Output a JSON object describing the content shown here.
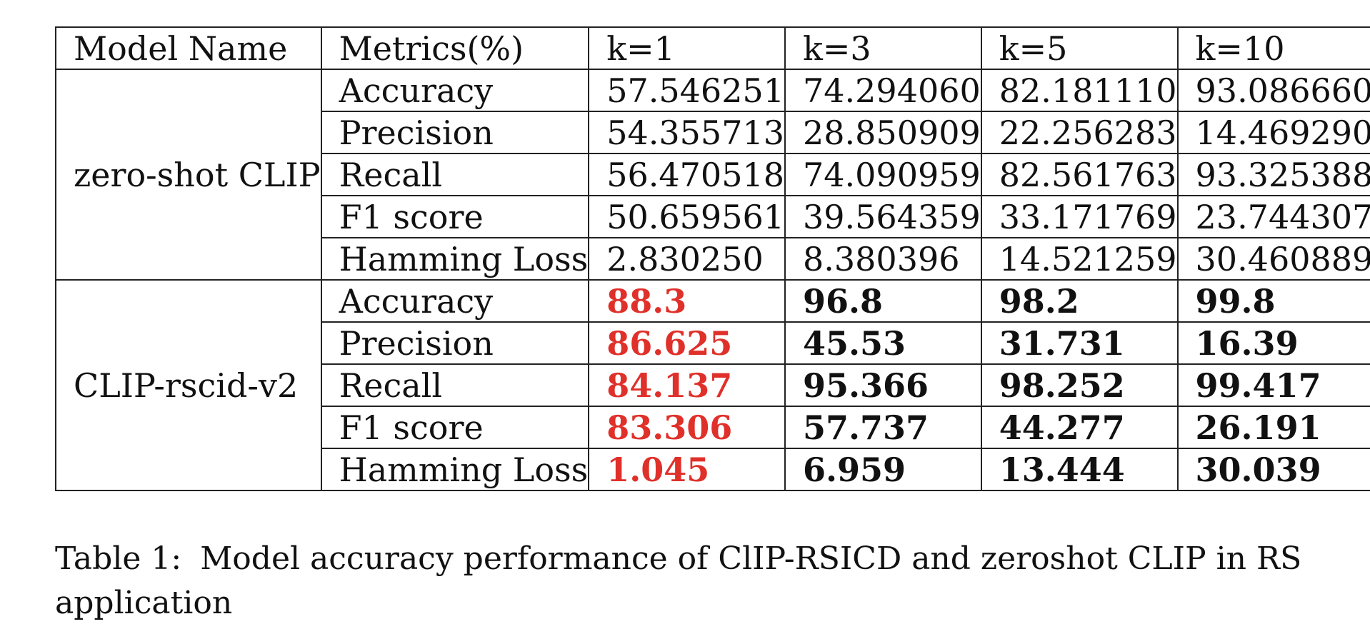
{
  "table": {
    "headers": [
      "Model Name",
      "Metrics(%)",
      "k=1",
      "k=3",
      "k=5",
      "k=10"
    ],
    "groups": [
      {
        "model": "zero-shot CLIP",
        "rows": [
          {
            "metric": "Accuracy",
            "values": [
              "57.546251",
              "74.294060",
              "82.181110",
              "93.086660"
            ]
          },
          {
            "metric": "Precision",
            "values": [
              "54.355713",
              "28.850909",
              "22.256283",
              "14.469290"
            ]
          },
          {
            "metric": "Recall",
            "values": [
              "56.470518",
              "74.090959",
              "82.561763",
              "93.325388"
            ]
          },
          {
            "metric": "F1 score",
            "values": [
              "50.659561",
              "39.564359",
              "33.171769",
              "23.744307"
            ]
          },
          {
            "metric": "Hamming Loss",
            "values": [
              "2.830250",
              "8.380396",
              "14.521259",
              "30.460889"
            ]
          }
        ]
      },
      {
        "model": "CLIP-rscid-v2",
        "rows": [
          {
            "metric": "Accuracy",
            "values": [
              "88.3",
              "96.8",
              "98.2",
              "99.8"
            ]
          },
          {
            "metric": "Precision",
            "values": [
              "86.625",
              "45.53",
              "31.731",
              "16.39"
            ]
          },
          {
            "metric": "Recall",
            "values": [
              "84.137",
              "95.366",
              "98.252",
              "99.417"
            ]
          },
          {
            "metric": "F1 score",
            "values": [
              "83.306",
              "57.737",
              "44.277",
              "26.191"
            ]
          },
          {
            "metric": "Hamming Loss",
            "values": [
              "1.045",
              "6.959",
              "13.444",
              "30.039"
            ]
          }
        ]
      }
    ]
  },
  "caption": {
    "label": "Table 1:",
    "text": "Model accuracy performance of ClIP-RSICD and zeroshot CLIP in RS application"
  },
  "colors": {
    "highlight": "#e0302a",
    "text": "#111111",
    "border": "#222222"
  }
}
